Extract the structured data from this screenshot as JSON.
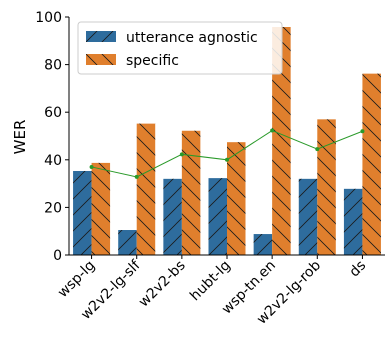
{
  "chart_data": {
    "type": "bar",
    "categories": [
      "wsp-lg",
      "w2v2-lg-slf",
      "w2v2-bs",
      "hubt-lg",
      "wsp-tn.en",
      "w2v2-lg-rob",
      "ds"
    ],
    "series": [
      {
        "name": "utterance agnostic",
        "color": "#2e6c9d",
        "hatch": "/",
        "values": [
          35.3,
          10.5,
          32.0,
          32.3,
          8.8,
          32.0,
          27.8
        ]
      },
      {
        "name": "specific",
        "color": "#e07f2d",
        "hatch": "\\",
        "values": [
          38.7,
          55.2,
          52.2,
          47.4,
          95.8,
          57.0,
          76.2
        ]
      }
    ],
    "line": {
      "color": "#2a9a2a",
      "values": [
        37.0,
        32.8,
        42.3,
        40.0,
        52.3,
        44.5,
        52.0
      ]
    },
    "ylabel": "WER",
    "ylim": [
      0,
      100
    ],
    "yticks": [
      0,
      20,
      40,
      60,
      80,
      100
    ],
    "legend": "upper-left",
    "grid": false
  }
}
